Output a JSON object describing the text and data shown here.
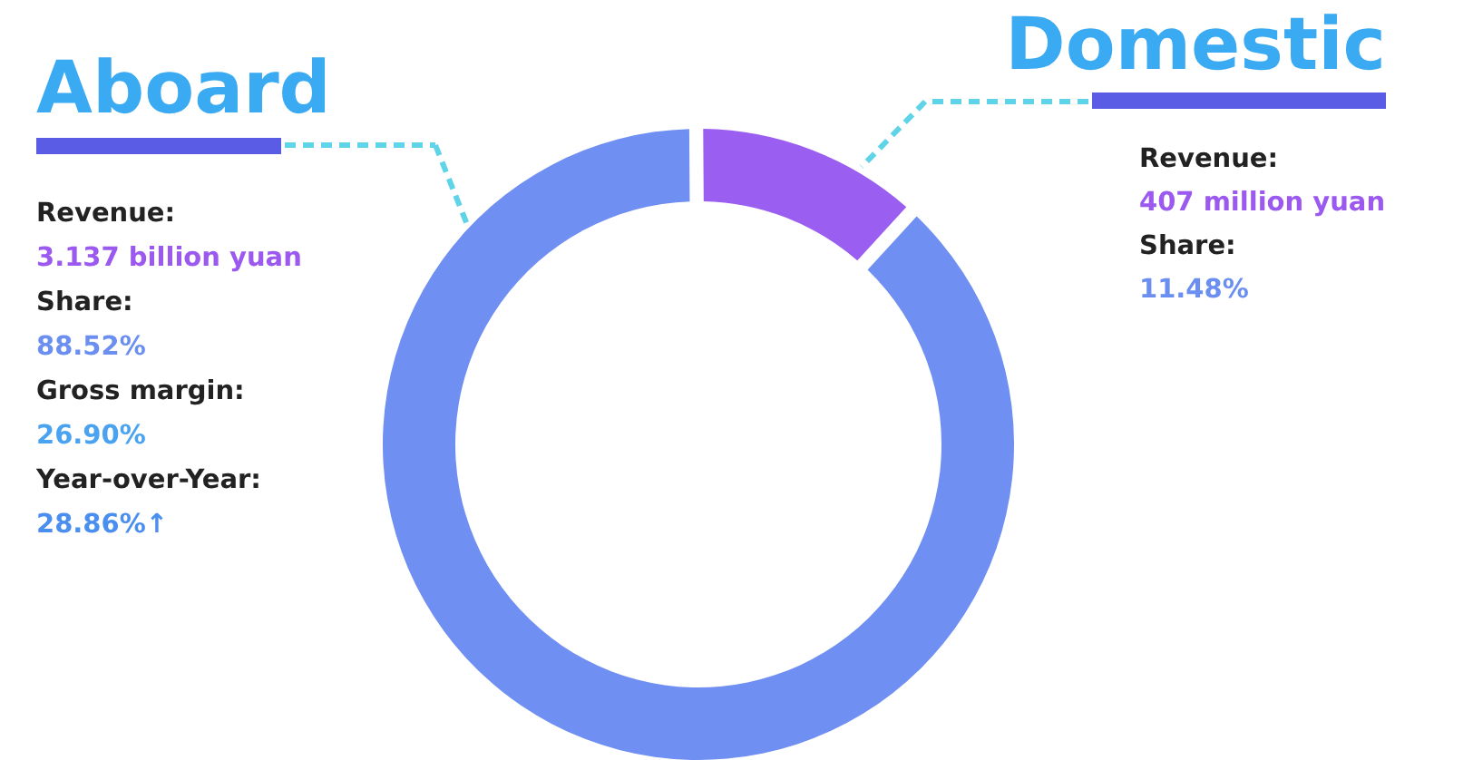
{
  "chart_data": {
    "type": "donut",
    "categories": [
      "Aboard",
      "Domestic"
    ],
    "values": [
      88.52,
      11.48
    ],
    "colors": [
      "#6f8ff2",
      "#9a5ef0"
    ],
    "annotations": [
      "Revenue:",
      "3.137 billion yuan",
      "Share:",
      "88.52%",
      "Gross margin:",
      "26.90%",
      "Year-over-Year:",
      "28.86%↑",
      "Revenue:",
      "407 million yuan",
      "Share:",
      "11.48%"
    ]
  }
}
